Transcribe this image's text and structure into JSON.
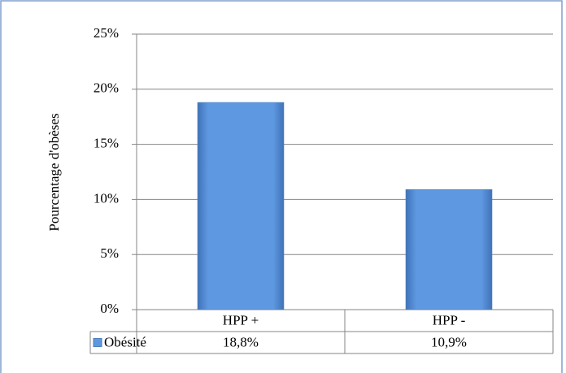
{
  "chart_data": {
    "type": "bar",
    "y_label": "Pourcentage d'obèses",
    "categories": [
      "HPP +",
      "HPP -"
    ],
    "series": [
      {
        "name": "Obésité",
        "color": "#4f81bd",
        "values": [
          18.8,
          10.9
        ],
        "value_labels": [
          "18,8%",
          "10,9%"
        ]
      }
    ],
    "ylim": [
      0,
      25
    ],
    "yticks": [
      {
        "value": 0,
        "label": "0%"
      },
      {
        "value": 5,
        "label": "5%"
      },
      {
        "value": 10,
        "label": "10%"
      },
      {
        "value": 15,
        "label": "15%"
      },
      {
        "value": 20,
        "label": "20%"
      },
      {
        "value": 25,
        "label": "25%"
      }
    ],
    "grid": true,
    "legend": "table"
  }
}
